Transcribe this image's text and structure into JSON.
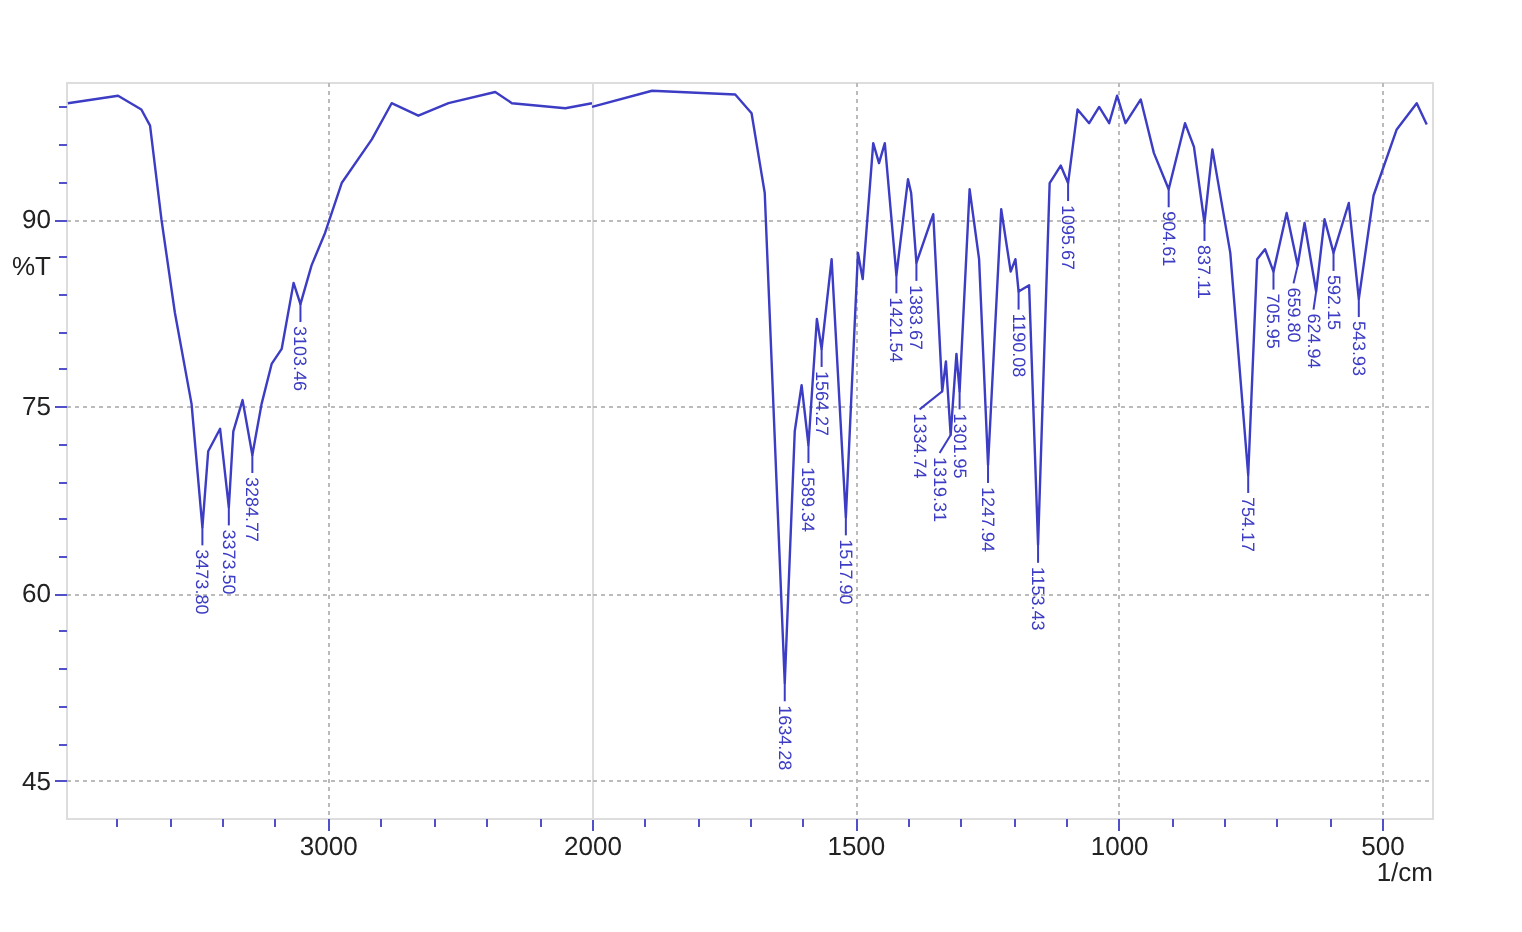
{
  "chart_data": [
    {
      "type": "line",
      "ylabel": "%T",
      "xlim": [
        3990,
        2000
      ],
      "ylim": [
        42,
        101
      ],
      "grid": true,
      "tick_labels": "xy",
      "line_style": "solid",
      "xticks": [
        {
          "value": 3800,
          "label": null
        },
        {
          "value": 3600,
          "label": null
        },
        {
          "value": 3400,
          "label": null
        },
        {
          "value": 3200,
          "label": null
        },
        3000,
        {
          "value": 2800,
          "label": null
        },
        {
          "value": 2600,
          "label": null
        },
        {
          "value": 2400,
          "label": null
        },
        {
          "value": 2200,
          "label": null
        },
        2000
      ],
      "yticks": [
        {
          "value": 99,
          "label": null
        },
        {
          "value": 96,
          "label": null
        },
        {
          "value": 93,
          "label": null
        },
        90,
        {
          "value": 87,
          "label": null
        },
        {
          "value": 84,
          "label": null
        },
        {
          "value": 81,
          "label": null
        },
        {
          "value": 78,
          "label": null
        },
        75,
        {
          "value": 72,
          "label": null
        },
        {
          "value": 69,
          "label": null
        },
        {
          "value": 66,
          "label": null
        },
        {
          "value": 63,
          "label": null
        },
        60,
        {
          "value": 57,
          "label": null
        },
        {
          "value": 54,
          "label": null
        },
        {
          "value": 51,
          "label": null
        },
        {
          "value": 48,
          "label": null
        },
        45
      ],
      "series": [
        {
          "color": "#3c3cc4",
          "x": [
            3983,
            3793,
            3705,
            3672,
            3629,
            3578,
            3515,
            3474,
            3452,
            3407,
            3374,
            3357,
            3322,
            3285,
            3250,
            3212,
            3174,
            3129,
            3103,
            3061,
            3010,
            2947,
            2833,
            2758,
            2657,
            2543,
            2366,
            2303,
            2101,
            2000
          ],
          "values": [
            99.3,
            99.9,
            98.8,
            97.5,
            90,
            82.5,
            75.2,
            65.3,
            71.4,
            73.2,
            66.9,
            73,
            75.5,
            71.1,
            75.2,
            78.4,
            79.6,
            84.9,
            83.2,
            86.3,
            88.9,
            92.9,
            96.4,
            99.3,
            98.3,
            99.3,
            100.2,
            99.3,
            98.9,
            99.3
          ]
        }
      ],
      "annotations": [
        {
          "text": "3473.80",
          "x": 3474,
          "y": 65.3
        },
        {
          "text": "3373.50",
          "x": 3374,
          "y": 66.9
        },
        {
          "text": "3284.77",
          "x": 3285,
          "y": 71.1
        },
        {
          "text": "3103.46",
          "x": 3103,
          "y": 83.2
        }
      ]
    },
    {
      "type": "line",
      "xlabel": "1/cm",
      "xlim": [
        2000,
        405
      ],
      "ylim": [
        42,
        101
      ],
      "grid": true,
      "tick_labels": "x",
      "line_style": "solid",
      "xticks": [
        {
          "value": 1900,
          "label": null
        },
        {
          "value": 1800,
          "label": null
        },
        {
          "value": 1700,
          "label": null
        },
        {
          "value": 1600,
          "label": null
        },
        1500,
        {
          "value": 1400,
          "label": null
        },
        {
          "value": 1300,
          "label": null
        },
        {
          "value": 1200,
          "label": null
        },
        {
          "value": 1100,
          "label": null
        },
        1000,
        {
          "value": 900,
          "label": null
        },
        {
          "value": 800,
          "label": null
        },
        {
          "value": 700,
          "label": null
        },
        {
          "value": 600,
          "label": null
        },
        500
      ],
      "yticks": [
        90,
        75,
        60,
        45
      ],
      "series": [
        {
          "color": "#3c3cc4",
          "x": [
            2000,
            1886,
            1728,
            1697,
            1672,
            1634,
            1615,
            1602,
            1589,
            1573,
            1564,
            1545,
            1518,
            1495,
            1486,
            1466,
            1455,
            1444,
            1422,
            1400,
            1394,
            1384,
            1352,
            1335,
            1328,
            1319,
            1308,
            1302,
            1283,
            1265,
            1248,
            1223,
            1205,
            1196,
            1190,
            1170,
            1153,
            1131,
            1110,
            1096,
            1078,
            1056,
            1037,
            1018,
            1003,
            987,
            958,
            933,
            905,
            874,
            857,
            837,
            822,
            788,
            754,
            737,
            722,
            706,
            681,
            660,
            647,
            625,
            609,
            592,
            563,
            544,
            516,
            472,
            434,
            415
          ],
          "values": [
            99,
            100.3,
            100,
            98.5,
            92.1,
            52.8,
            73,
            76.7,
            71.9,
            82,
            79.6,
            86.8,
            66.1,
            87.3,
            85.2,
            96.1,
            94.5,
            96.1,
            85.5,
            93.2,
            92.1,
            86.5,
            90.4,
            76.2,
            78.6,
            72.7,
            79.2,
            76.2,
            92.4,
            86.8,
            70.3,
            90.8,
            85.8,
            86.8,
            84.2,
            84.7,
            63.9,
            92.9,
            94.3,
            92.9,
            98.8,
            97.7,
            99,
            97.7,
            99.9,
            97.7,
            99.6,
            95.3,
            92.4,
            97.7,
            95.8,
            89.7,
            95.6,
            87.3,
            69.5,
            86.8,
            87.6,
            85.8,
            90.5,
            86.3,
            89.7,
            84.2,
            90,
            87.3,
            91.3,
            83.6,
            91.9,
            97.2,
            99.3,
            97.6
          ]
        }
      ],
      "annotations": [
        {
          "text": "1634.28",
          "x": 1634,
          "y": 52.8
        },
        {
          "text": "1589.34",
          "x": 1589,
          "y": 71.9
        },
        {
          "text": "1564.27",
          "x": 1564,
          "y": 79.6
        },
        {
          "text": "1517.90",
          "x": 1518,
          "y": 66.1
        },
        {
          "text": "1421.54",
          "x": 1422,
          "y": 85.5
        },
        {
          "text": "1383.67",
          "x": 1384,
          "y": 86.5
        },
        {
          "text": "1334.74",
          "x": 1335,
          "y": 76.2
        },
        {
          "text": "1319.31",
          "x": 1319,
          "y": 72.7
        },
        {
          "text": "1301.95",
          "x": 1302,
          "y": 76.2
        },
        {
          "text": "1247.94",
          "x": 1248,
          "y": 70.3
        },
        {
          "text": "1190.08",
          "x": 1190,
          "y": 84.2
        },
        {
          "text": "1153.43",
          "x": 1153,
          "y": 63.9
        },
        {
          "text": "1095.67",
          "x": 1096,
          "y": 92.9
        },
        {
          "text": "904.61",
          "x": 905,
          "y": 92.4
        },
        {
          "text": "837.11",
          "x": 837,
          "y": 89.7
        },
        {
          "text": "754.17",
          "x": 754,
          "y": 69.5
        },
        {
          "text": "705.95",
          "x": 706,
          "y": 85.8
        },
        {
          "text": "659.80",
          "x": 660,
          "y": 86.3
        },
        {
          "text": "624.94",
          "x": 625,
          "y": 84.2
        },
        {
          "text": "592.15",
          "x": 592,
          "y": 87.3
        },
        {
          "text": "543.93",
          "x": 544,
          "y": 83.6
        }
      ]
    }
  ]
}
